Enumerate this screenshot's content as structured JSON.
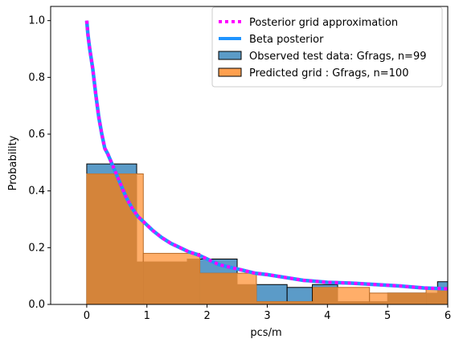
{
  "chart_data": {
    "type": "histogram",
    "xlabel": "pcs/m",
    "ylabel": "Probability",
    "xlim": [
      -0.6,
      6
    ],
    "ylim": [
      0,
      1.05
    ],
    "xticks": [
      0,
      1,
      2,
      3,
      4,
      5,
      6
    ],
    "yticks": [
      0.0,
      0.2,
      0.4,
      0.6,
      0.8,
      1.0
    ],
    "ytick_labels": [
      "0.0",
      "0.2",
      "0.4",
      "0.6",
      "0.8",
      "1.0"
    ],
    "legend_position": "upper right",
    "colors": {
      "observed": "#5b9bc8",
      "predicted": "#ffa04f",
      "overlap": "#d4843a",
      "beta": "#1f94ff",
      "grid": "#ff00ff"
    },
    "series": [
      {
        "name": "Posterior grid approximation",
        "kind": "line",
        "style": "dotted",
        "x": [
          0,
          0.02,
          0.05,
          0.1,
          0.15,
          0.2,
          0.25,
          0.3,
          0.35,
          0.45,
          0.55,
          0.65,
          0.75,
          0.85,
          0.95,
          1.1,
          1.25,
          1.4,
          1.55,
          1.7,
          1.85,
          2.0,
          2.2,
          2.4,
          2.6,
          2.8,
          3.0,
          3.3,
          3.6,
          4.0,
          4.4,
          4.8,
          5.2,
          5.6,
          6.0
        ],
        "y": [
          1.0,
          0.95,
          0.9,
          0.83,
          0.74,
          0.66,
          0.6,
          0.55,
          0.53,
          0.48,
          0.43,
          0.38,
          0.34,
          0.31,
          0.29,
          0.26,
          0.235,
          0.215,
          0.2,
          0.185,
          0.175,
          0.16,
          0.14,
          0.13,
          0.12,
          0.11,
          0.105,
          0.095,
          0.085,
          0.078,
          0.075,
          0.07,
          0.065,
          0.058,
          0.055
        ]
      },
      {
        "name": "Beta posterior",
        "kind": "line",
        "style": "solid",
        "x": [
          0,
          0.02,
          0.05,
          0.1,
          0.15,
          0.2,
          0.25,
          0.3,
          0.35,
          0.45,
          0.55,
          0.65,
          0.75,
          0.85,
          0.95,
          1.1,
          1.25,
          1.4,
          1.55,
          1.7,
          1.85,
          2.0,
          2.2,
          2.4,
          2.6,
          2.8,
          3.0,
          3.3,
          3.6,
          4.0,
          4.4,
          4.8,
          5.2,
          5.6,
          6.0
        ],
        "y": [
          1.0,
          0.95,
          0.9,
          0.83,
          0.74,
          0.66,
          0.6,
          0.55,
          0.53,
          0.48,
          0.43,
          0.38,
          0.34,
          0.31,
          0.29,
          0.26,
          0.235,
          0.215,
          0.2,
          0.185,
          0.175,
          0.16,
          0.14,
          0.13,
          0.12,
          0.11,
          0.105,
          0.095,
          0.085,
          0.078,
          0.075,
          0.07,
          0.065,
          0.058,
          0.055
        ]
      },
      {
        "name": "Observed test data: Gfrags, n=99",
        "kind": "bar",
        "bins": [
          {
            "x0": 0.0,
            "x1": 0.83,
            "y": 0.495
          },
          {
            "x0": 0.83,
            "x1": 1.67,
            "y": 0.15
          },
          {
            "x0": 1.67,
            "x1": 2.5,
            "y": 0.16
          },
          {
            "x0": 2.5,
            "x1": 3.33,
            "y": 0.07
          },
          {
            "x0": 3.33,
            "x1": 3.75,
            "y": 0.06
          },
          {
            "x0": 3.75,
            "x1": 4.17,
            "y": 0.07
          },
          {
            "x0": 4.17,
            "x1": 5.0,
            "y": 0.01
          },
          {
            "x0": 5.0,
            "x1": 5.83,
            "y": 0.04
          },
          {
            "x0": 5.83,
            "x1": 6.0,
            "y": 0.08
          }
        ]
      },
      {
        "name": "Predicted grid : Gfrags, n=100",
        "kind": "bar",
        "bins": [
          {
            "x0": 0.0,
            "x1": 0.94,
            "y": 0.46
          },
          {
            "x0": 0.94,
            "x1": 1.88,
            "y": 0.18
          },
          {
            "x0": 1.88,
            "x1": 2.82,
            "y": 0.11
          },
          {
            "x0": 2.82,
            "x1": 3.76,
            "y": 0.01
          },
          {
            "x0": 3.76,
            "x1": 4.7,
            "y": 0.06
          },
          {
            "x0": 4.7,
            "x1": 5.64,
            "y": 0.04
          },
          {
            "x0": 5.64,
            "x1": 6.0,
            "y": 0.06
          }
        ]
      }
    ]
  }
}
